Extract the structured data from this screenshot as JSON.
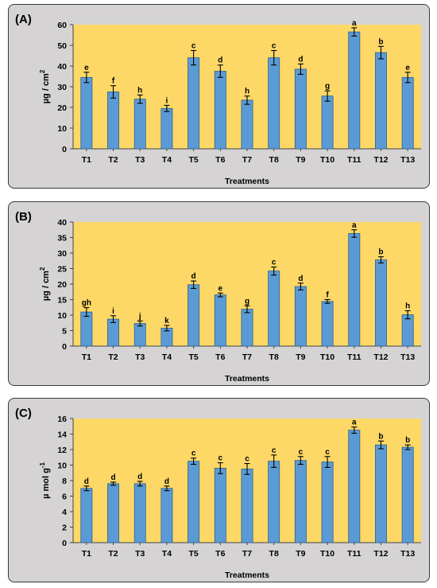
{
  "colors": {
    "plot_bg": "#fdd866",
    "bar": "#5b9bd5",
    "bar_edge": "#2f5f8f",
    "panel_bg": "#d5d3d4"
  },
  "chart_data": [
    {
      "type": "bar",
      "panel_label": "(A)",
      "xlabel": "Treatments",
      "ylabel_main": "µg / cm",
      "ylabel_sup": "2",
      "ylim": [
        0,
        60
      ],
      "yticks": [
        0,
        10,
        20,
        30,
        40,
        50,
        60
      ],
      "categories": [
        "T1",
        "T2",
        "T3",
        "T4",
        "T5",
        "T6",
        "T7",
        "T8",
        "T9",
        "T10",
        "T11",
        "T12",
        "T13"
      ],
      "values": [
        34.5,
        27.5,
        24,
        19.5,
        44,
        37.5,
        23.5,
        44,
        38.5,
        25.5,
        56.5,
        46.5,
        34.5
      ],
      "errors": [
        2.5,
        3,
        2,
        1.5,
        3.5,
        3,
        2,
        3.5,
        2.5,
        2.5,
        2,
        3,
        2.5
      ],
      "letters": [
        "e",
        "f",
        "h",
        "i",
        "c",
        "d",
        "h",
        "c",
        "d",
        "g",
        "a",
        "b",
        "e"
      ]
    },
    {
      "type": "bar",
      "panel_label": "(B)",
      "xlabel": "Treatments",
      "ylabel_main": "µg / cm",
      "ylabel_sup": "2",
      "ylim": [
        0,
        40
      ],
      "yticks": [
        0,
        5,
        10,
        15,
        20,
        25,
        30,
        35,
        40
      ],
      "categories": [
        "T1",
        "T2",
        "T3",
        "T4",
        "T5",
        "T6",
        "T7",
        "T8",
        "T9",
        "T10",
        "T11",
        "T12",
        "T13"
      ],
      "values": [
        11,
        8.7,
        7.3,
        5.8,
        19.8,
        16.5,
        11.9,
        24.2,
        19.2,
        14.4,
        36.3,
        27.8,
        10.1
      ],
      "errors": [
        1.4,
        1.1,
        0.8,
        0.9,
        1.2,
        0.6,
        1.1,
        1.3,
        1.1,
        0.6,
        1.2,
        1.0,
        1.3
      ],
      "letters": [
        "gh",
        "i",
        "j",
        "k",
        "d",
        "e",
        "g",
        "c",
        "d",
        "f",
        "a",
        "b",
        "h"
      ]
    },
    {
      "type": "bar",
      "panel_label": "(C)",
      "xlabel": "Treatments",
      "ylabel_main": "µ mol g",
      "ylabel_sup": "-1",
      "ylim": [
        0,
        16
      ],
      "yticks": [
        0,
        2,
        4,
        6,
        8,
        10,
        12,
        14,
        16
      ],
      "categories": [
        "T1",
        "T2",
        "T3",
        "T4",
        "T5",
        "T6",
        "T7",
        "T8",
        "T9",
        "T10",
        "T11",
        "T12",
        "T13"
      ],
      "values": [
        7.0,
        7.6,
        7.6,
        7.0,
        10.5,
        9.6,
        9.5,
        10.5,
        10.6,
        10.4,
        14.5,
        12.6,
        12.3
      ],
      "errors": [
        0.3,
        0.2,
        0.3,
        0.3,
        0.4,
        0.7,
        0.7,
        0.8,
        0.5,
        0.7,
        0.4,
        0.5,
        0.3
      ],
      "letters": [
        "d",
        "d",
        "d",
        "d",
        "c",
        "c",
        "c",
        "c",
        "c",
        "c",
        "a",
        "b",
        "b"
      ]
    }
  ]
}
